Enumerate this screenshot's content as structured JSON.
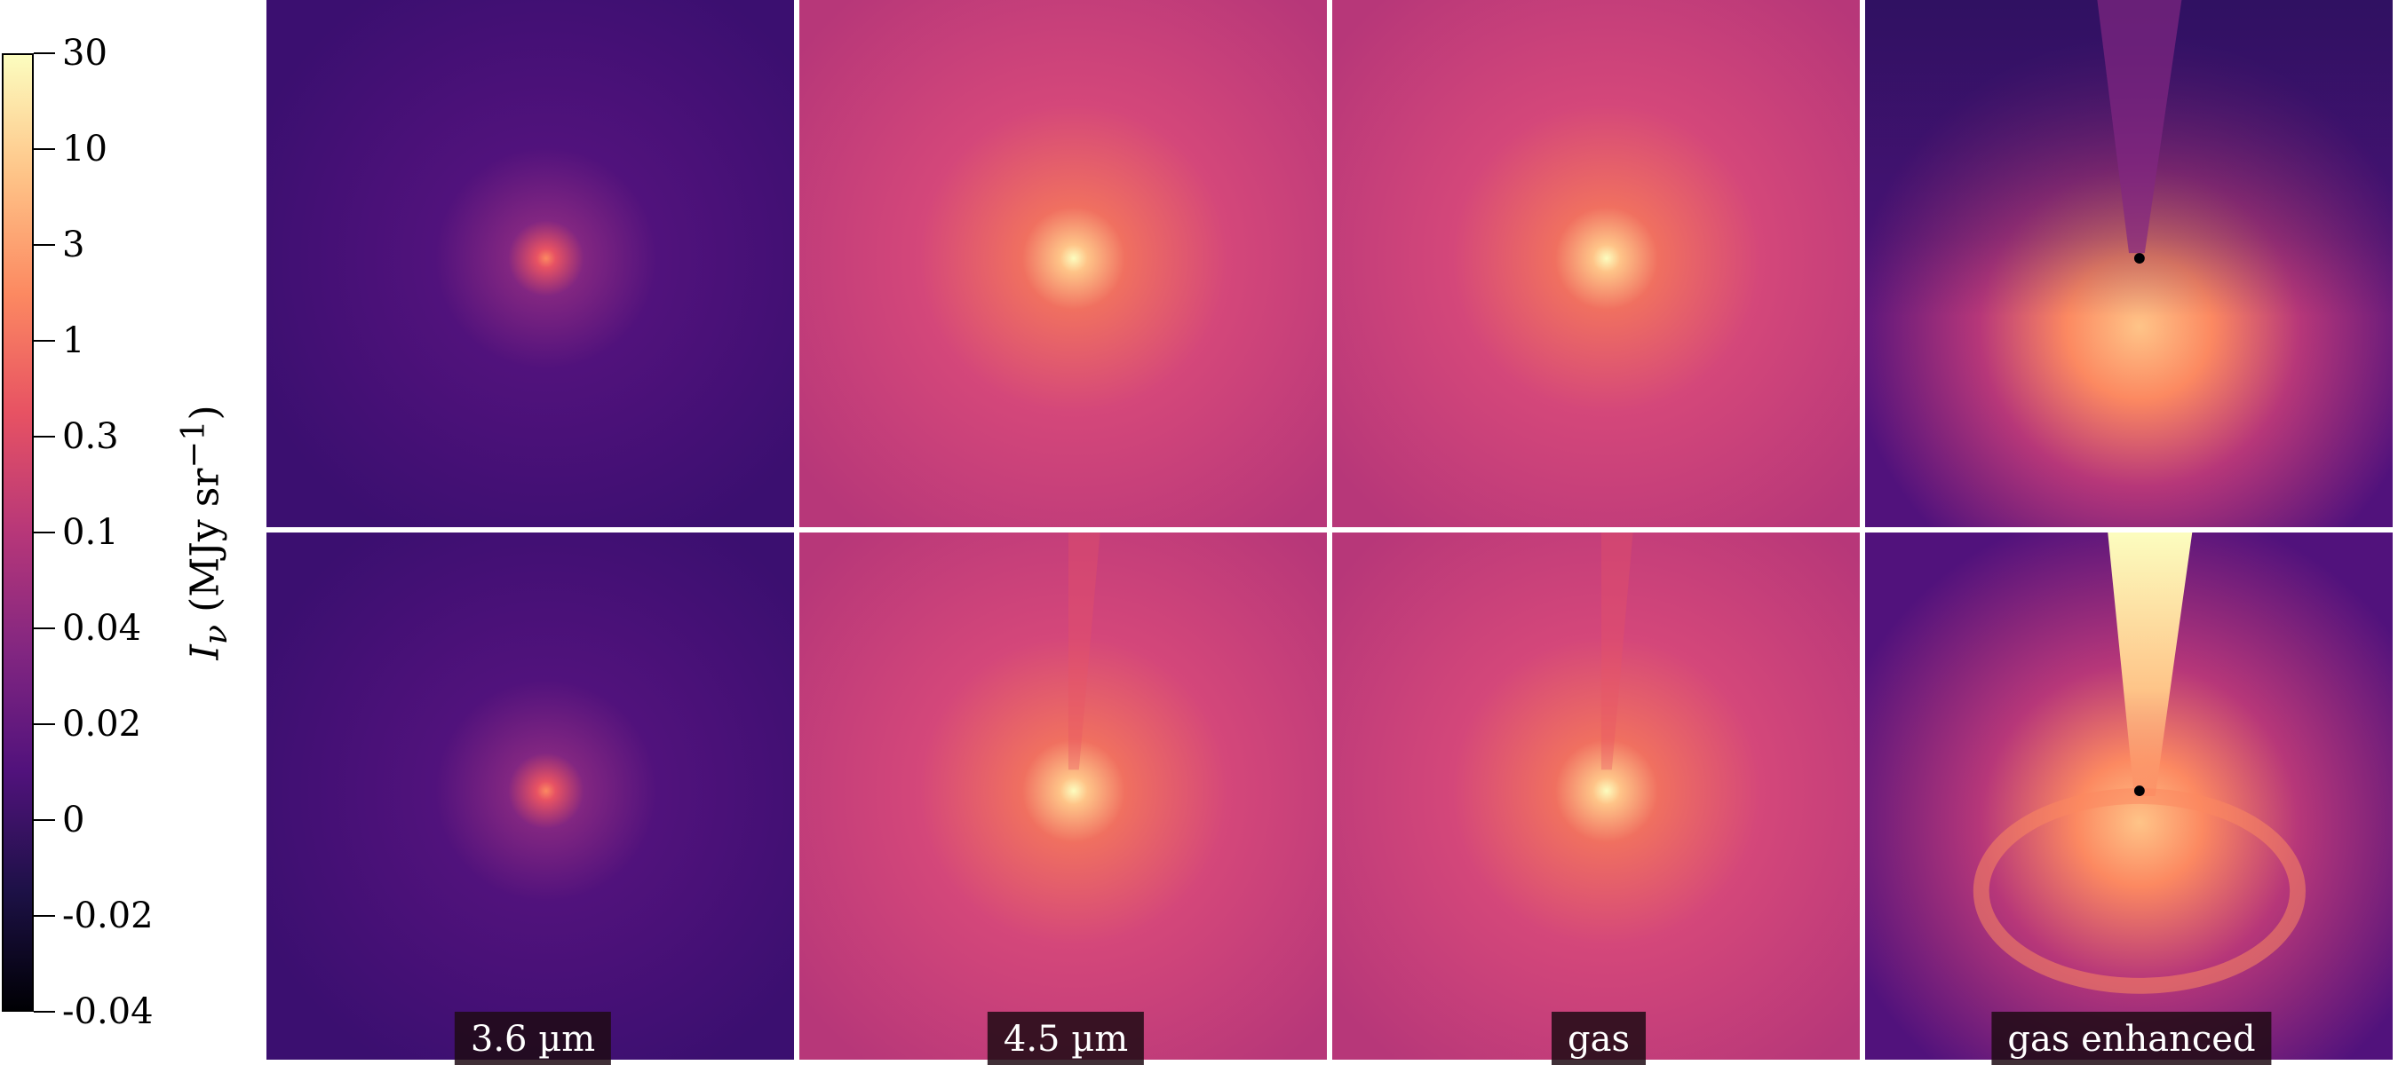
{
  "colorbar": {
    "title": "I",
    "title_sub": "ν",
    "title_units": "(MJy sr",
    "title_exp": "−1",
    "title_close": ")",
    "ticks": [
      "30",
      "10",
      "3",
      "1",
      "0.3",
      "0.1",
      "0.04",
      "0.02",
      "0",
      "-0.02",
      "-0.04"
    ],
    "colormap": "magma",
    "colors": [
      "#000004",
      "#1d1147",
      "#51127c",
      "#822681",
      "#b73779",
      "#e75263",
      "#fc8961",
      "#fec488",
      "#fcfdbf"
    ]
  },
  "panels": {
    "columns": [
      "3.6 µm",
      "4.5 µm",
      "gas",
      "gas enhanced"
    ],
    "rows": 2
  }
}
